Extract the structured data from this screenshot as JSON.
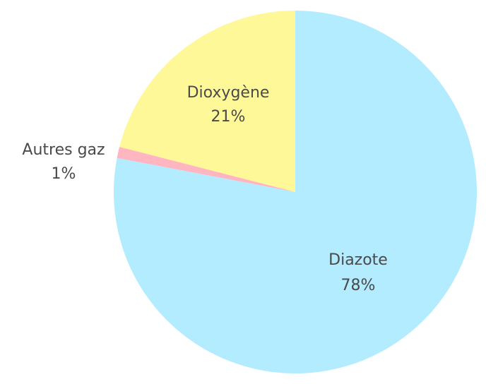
{
  "chart_data": {
    "type": "pie",
    "title": "",
    "start_angle_deg": 90,
    "direction": "counterclockwise",
    "slices": [
      {
        "label": "Dioxygène",
        "value": 21,
        "value_label": "21%",
        "color": "#fff899"
      },
      {
        "label": "Autres gaz",
        "value": 1,
        "value_label": "1%",
        "color": "#ffb6c1"
      },
      {
        "label": "Diazote",
        "value": 78,
        "value_label": "78%",
        "color": "#b3ebff"
      }
    ]
  }
}
